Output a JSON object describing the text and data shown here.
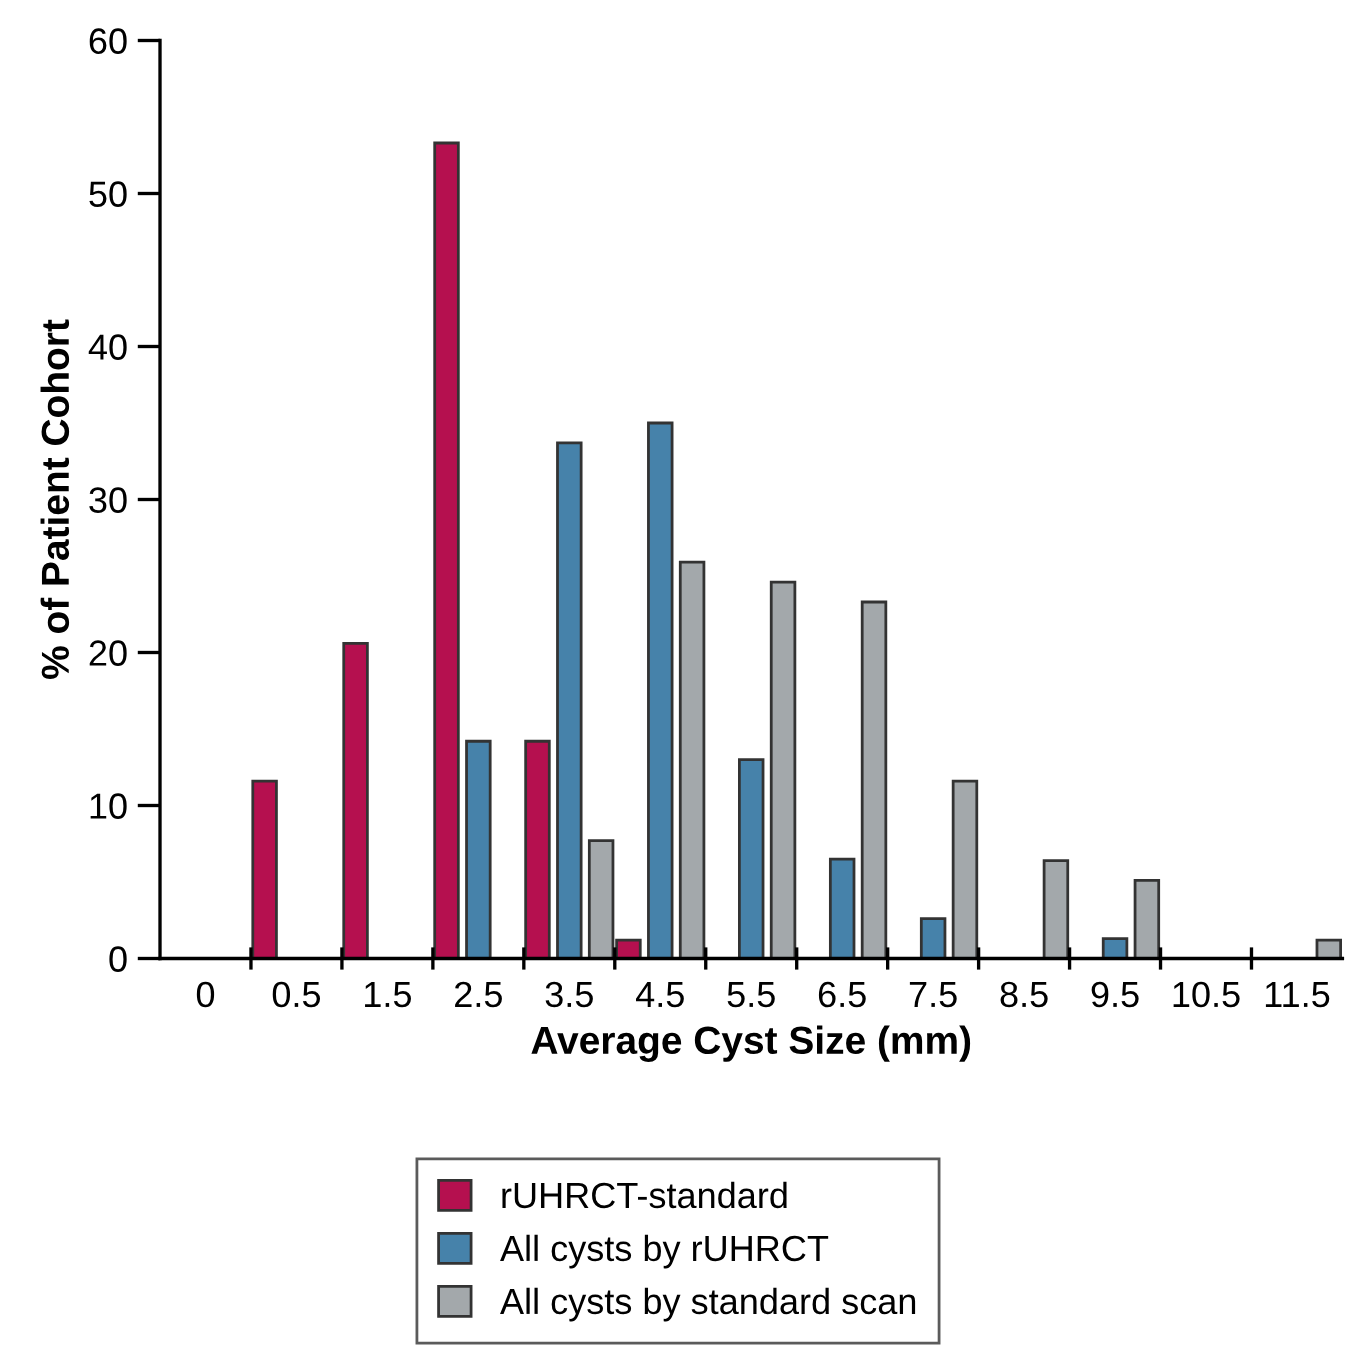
{
  "chart_data": {
    "type": "bar",
    "xlabel": "Average Cyst Size (mm)",
    "ylabel": "% of Patient Cohort",
    "categories": [
      "0",
      "0.5",
      "1.5",
      "2.5",
      "3.5",
      "4.5",
      "5.5",
      "6.5",
      "7.5",
      "8.5",
      "9.5",
      "10.5",
      "11.5"
    ],
    "series": [
      {
        "name": "rUHRCT-standard",
        "color": "#b5104f",
        "values": [
          0,
          11.6,
          20.6,
          53.3,
          14.2,
          1.2,
          0,
          0,
          0,
          0,
          0,
          0,
          0
        ]
      },
      {
        "name": "All cysts by rUHRCT",
        "color": "#4682aa",
        "values": [
          0,
          0,
          0,
          14.2,
          33.7,
          35.0,
          13.0,
          6.5,
          2.6,
          0,
          1.3,
          0,
          0
        ]
      },
      {
        "name": "All cysts by standard scan",
        "color": "#a3a8ab",
        "values": [
          0,
          0,
          0,
          0,
          7.7,
          25.9,
          24.6,
          23.3,
          11.6,
          6.4,
          5.1,
          0,
          1.2
        ]
      }
    ],
    "ylim": [
      0,
      60
    ],
    "yticks": [
      0,
      10,
      20,
      30,
      40,
      50,
      60
    ],
    "grid": false,
    "legend": "bottom"
  }
}
